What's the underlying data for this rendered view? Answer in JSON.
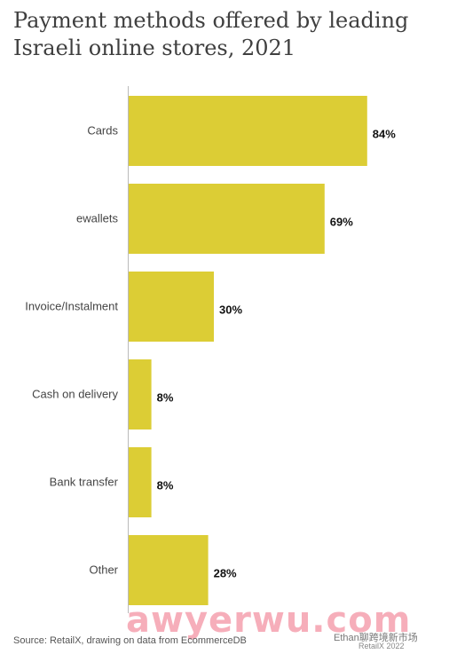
{
  "title": "Payment methods offered by leading Israeli online stores, 2021",
  "source": "Source: RetailX, drawing on data from EcommerceDB",
  "watermark": {
    "main": "awyerwu.com",
    "wechat": "Ethan聊跨境新市场",
    "credit": "RetailX 2022"
  },
  "colors": {
    "bar": "#dccd35",
    "axis": "#bbbbbb",
    "label": "#444444",
    "value": "#111111"
  },
  "chart_data": {
    "type": "bar",
    "orientation": "horizontal",
    "categories": [
      "Cards",
      "ewallets",
      "Invoice/Instalment",
      "Cash on delivery",
      "Bank transfer",
      "Other"
    ],
    "values": [
      84,
      69,
      30,
      8,
      8,
      28
    ],
    "value_labels": [
      "84%",
      "69%",
      "30%",
      "8%",
      "8%",
      "28%"
    ],
    "unit": "%",
    "xlim": [
      0,
      100
    ],
    "grid": false,
    "legend": "none"
  }
}
